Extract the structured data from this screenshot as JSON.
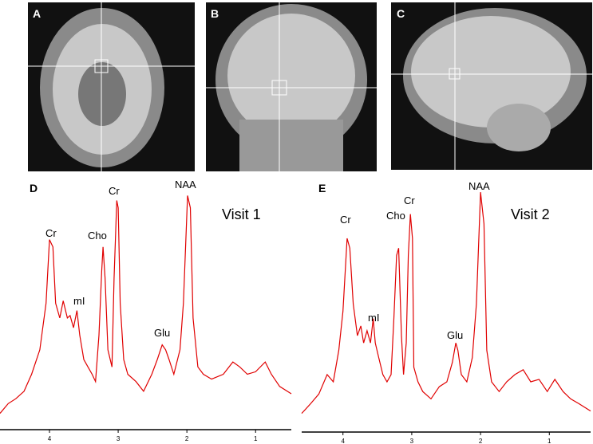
{
  "image_panels": [
    {
      "label": "A"
    },
    {
      "label": "B"
    },
    {
      "label": "C"
    }
  ],
  "chart_data": [
    {
      "type": "line",
      "panel": "D",
      "label": "Visit 1",
      "color": "#e00000",
      "annotations": [
        "Cr",
        "mI",
        "Cho",
        "Cr",
        "NAA",
        "Glu"
      ],
      "xlim": [
        4.72,
        0.48
      ],
      "ylim": [
        0,
        100
      ],
      "xticks": [
        4,
        3,
        2,
        1
      ],
      "x": [
        4.72,
        4.6,
        4.49,
        4.37,
        4.26,
        4.14,
        4.05,
        4.0,
        3.95,
        3.91,
        3.85,
        3.8,
        3.74,
        3.7,
        3.65,
        3.6,
        3.56,
        3.5,
        3.44,
        3.38,
        3.33,
        3.28,
        3.24,
        3.22,
        3.19,
        3.15,
        3.09,
        3.06,
        3.02,
        3.0,
        2.97,
        2.92,
        2.86,
        2.74,
        2.63,
        2.51,
        2.43,
        2.36,
        2.31,
        2.26,
        2.19,
        2.1,
        2.05,
        1.99,
        1.95,
        1.91,
        1.84,
        1.76,
        1.64,
        1.47,
        1.33,
        1.23,
        1.12,
        1.0,
        0.86,
        0.77,
        0.65,
        0.48
      ],
      "values": [
        6,
        10,
        12,
        15,
        22,
        32,
        51,
        77,
        74,
        51,
        45,
        52,
        45,
        46,
        41,
        48,
        38,
        28,
        25,
        22,
        19,
        38,
        64,
        74,
        61,
        32,
        25,
        61,
        93,
        90,
        51,
        28,
        22,
        19,
        15,
        22,
        28,
        34,
        32,
        28,
        22,
        32,
        51,
        95,
        90,
        45,
        25,
        22,
        20,
        22,
        27,
        25,
        22,
        23,
        27,
        22,
        17,
        14
      ]
    },
    {
      "type": "line",
      "panel": "E",
      "label": "Visit 2",
      "color": "#e00000",
      "annotations": [
        "Cr",
        "mI",
        "Cho",
        "Cr",
        "NAA",
        "Glu"
      ],
      "xlim": [
        4.6,
        0.4
      ],
      "ylim": [
        0,
        100
      ],
      "xticks": [
        4,
        3,
        2,
        1
      ],
      "x": [
        4.6,
        4.47,
        4.35,
        4.23,
        4.14,
        4.06,
        4.0,
        3.94,
        3.9,
        3.85,
        3.79,
        3.74,
        3.7,
        3.65,
        3.6,
        3.56,
        3.53,
        3.48,
        3.42,
        3.36,
        3.3,
        3.26,
        3.22,
        3.19,
        3.15,
        3.12,
        3.08,
        3.05,
        3.02,
        2.99,
        2.97,
        2.91,
        2.84,
        2.72,
        2.6,
        2.49,
        2.41,
        2.36,
        2.33,
        2.28,
        2.2,
        2.12,
        2.06,
        2.0,
        1.95,
        1.91,
        1.84,
        1.73,
        1.62,
        1.5,
        1.38,
        1.27,
        1.15,
        1.03,
        0.92,
        0.8,
        0.69,
        0.57,
        0.4
      ],
      "values": [
        7,
        11,
        15,
        23,
        20,
        33,
        49,
        79,
        75,
        52,
        39,
        43,
        36,
        41,
        36,
        46,
        36,
        30,
        23,
        20,
        23,
        46,
        72,
        75,
        39,
        23,
        36,
        72,
        89,
        79,
        26,
        20,
        16,
        13,
        18,
        20,
        28,
        36,
        33,
        23,
        20,
        30,
        52,
        98,
        85,
        33,
        20,
        16,
        20,
        23,
        25,
        20,
        21,
        16,
        21,
        16,
        13,
        11,
        8
      ]
    }
  ]
}
